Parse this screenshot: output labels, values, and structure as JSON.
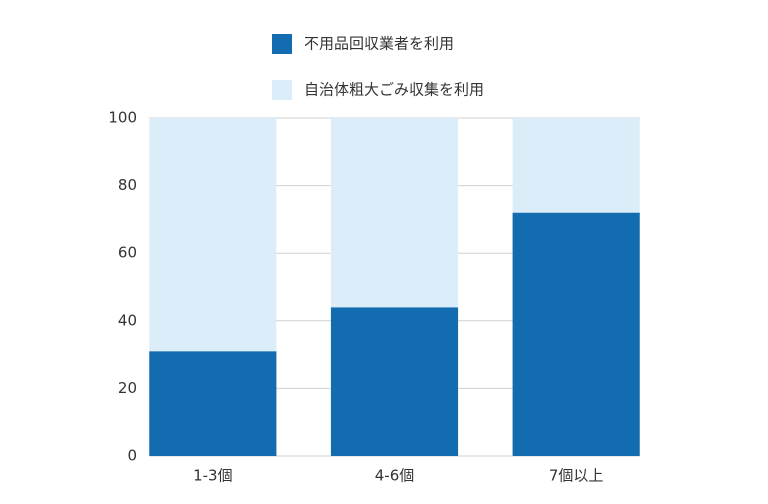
{
  "chart_data": {
    "type": "stacked_bar",
    "categories": [
      "1-3個",
      "4-6個",
      "7個以上"
    ],
    "series": [
      {
        "name": "不用品回収業者を利用",
        "color": "#136cb0",
        "values": [
          31,
          44,
          72
        ]
      },
      {
        "name": "自治体粗大ごみ収集を利用",
        "color": "#dbedf9",
        "values": [
          69,
          56,
          28
        ]
      }
    ],
    "ylim": [
      0,
      100
    ],
    "yticks": [
      0,
      20,
      40,
      60,
      80,
      100
    ],
    "grid": true
  }
}
